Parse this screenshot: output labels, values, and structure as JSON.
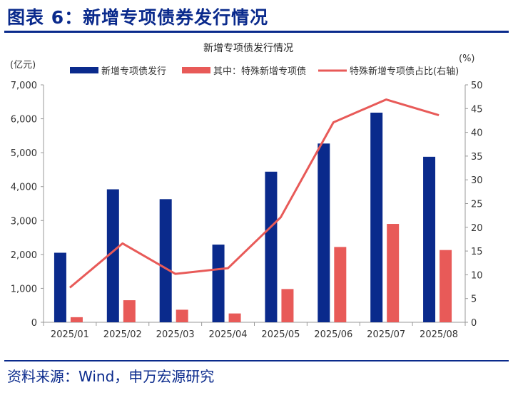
{
  "figure": {
    "title": "图表 6：新增专项债券发行情况",
    "source": "资料来源：Wind，申万宏源研究"
  },
  "colors": {
    "bar_primary": "#0a2a8c",
    "bar_secondary": "#e85a58",
    "line": "#e85a58",
    "title": "#0a2a8c"
  },
  "chart_data": {
    "type": "bar",
    "title": "新增专项债发行情况",
    "left_unit": "(亿元)",
    "right_unit": "(%)",
    "categories": [
      "2025/01",
      "2025/02",
      "2025/03",
      "2025/04",
      "2025/05",
      "2025/06",
      "2025/07",
      "2025/08"
    ],
    "series": [
      {
        "name": "新增专项债发行",
        "type": "bar",
        "axis": "left",
        "values": [
          2050,
          3920,
          3630,
          2290,
          4440,
          5270,
          6180,
          4880
        ]
      },
      {
        "name": "其中：特殊新增专项债",
        "type": "bar",
        "axis": "left",
        "values": [
          150,
          650,
          370,
          260,
          980,
          2220,
          2900,
          2130
        ]
      },
      {
        "name": "特殊新增专项债占比(右轴)",
        "type": "line",
        "axis": "right",
        "values": [
          7.3,
          16.6,
          10.2,
          11.4,
          22.1,
          42.1,
          46.9,
          43.6
        ]
      }
    ],
    "ylim_left": [
      0,
      7000
    ],
    "yticks_left": [
      "0",
      "1,000",
      "2,000",
      "3,000",
      "4,000",
      "5,000",
      "6,000",
      "7,000"
    ],
    "ylim_right": [
      0,
      50
    ],
    "yticks_right": [
      "0",
      "5",
      "10",
      "15",
      "20",
      "25",
      "30",
      "35",
      "40",
      "45",
      "50"
    ]
  }
}
